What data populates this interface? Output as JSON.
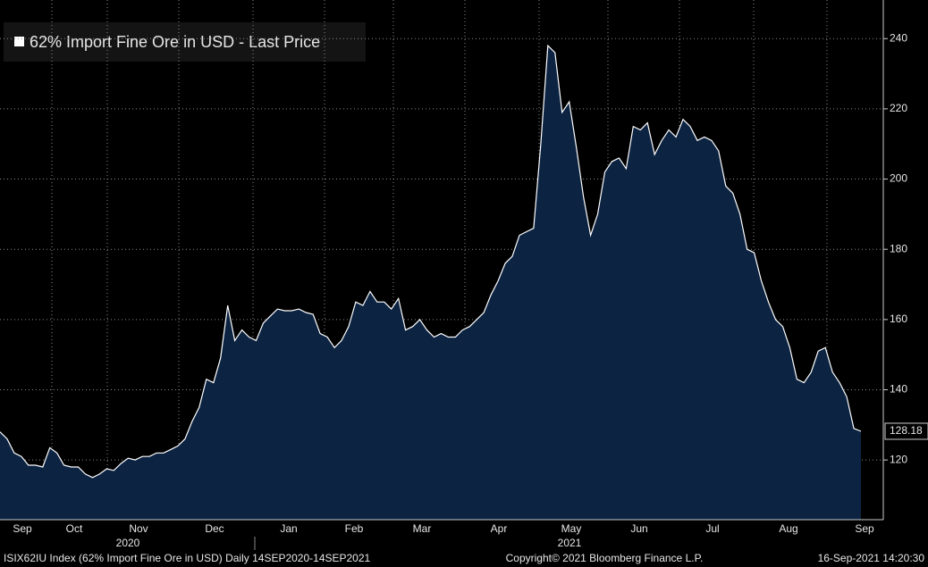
{
  "chart_data": {
    "type": "area",
    "legend": "62% Import Fine Ore in USD - Last Price",
    "months": [
      "Sep",
      "Oct",
      "Nov",
      "Dec",
      "Jan",
      "Feb",
      "Mar",
      "Apr",
      "May",
      "Jun",
      "Jul",
      "Aug",
      "Sep"
    ],
    "years": [
      "2020",
      "2021"
    ],
    "series": [
      {
        "name": "62% Import Fine Ore in USD - Last Price",
        "color": "#ffffff",
        "fill": "#0c2342",
        "values": [
          128,
          126,
          122,
          121,
          118.5,
          118.5,
          118,
          123.5,
          122,
          118.5,
          118,
          118,
          116,
          115,
          116,
          117.5,
          117,
          119,
          120.5,
          120,
          121,
          121,
          122,
          122,
          123,
          124,
          126,
          131,
          135,
          143,
          142,
          149,
          164,
          154,
          157,
          155,
          154,
          159,
          161,
          163,
          162.5,
          162.5,
          163,
          162,
          161.5,
          156,
          155,
          152,
          154,
          158,
          165,
          164,
          168,
          165,
          165,
          163,
          166,
          157,
          158,
          160,
          157,
          155,
          156,
          155,
          155,
          157,
          158,
          160,
          162,
          167,
          171,
          176,
          178,
          184,
          185,
          186,
          210,
          238,
          236,
          219,
          222,
          209,
          195,
          184,
          190,
          202,
          205,
          206,
          203,
          215,
          214,
          216,
          207,
          211,
          214,
          212,
          217,
          215,
          211,
          212,
          211,
          208,
          198,
          196,
          190,
          180,
          179,
          171,
          165,
          160,
          158,
          152,
          143,
          142,
          145,
          151,
          152,
          145,
          142,
          138,
          129,
          128.18
        ]
      }
    ],
    "ylim": [
      103,
      251
    ],
    "yticks": [
      120,
      140,
      160,
      180,
      200,
      220,
      240
    ],
    "grid": true,
    "footer_left": "ISIX62IU Index (62% Import Fine Ore in USD)  Daily 14SEP2020-14SEP2021",
    "footer_center": "Copyright© 2021 Bloomberg Finance L.P.",
    "footer_right": "16-Sep-2021 14:20:30"
  }
}
